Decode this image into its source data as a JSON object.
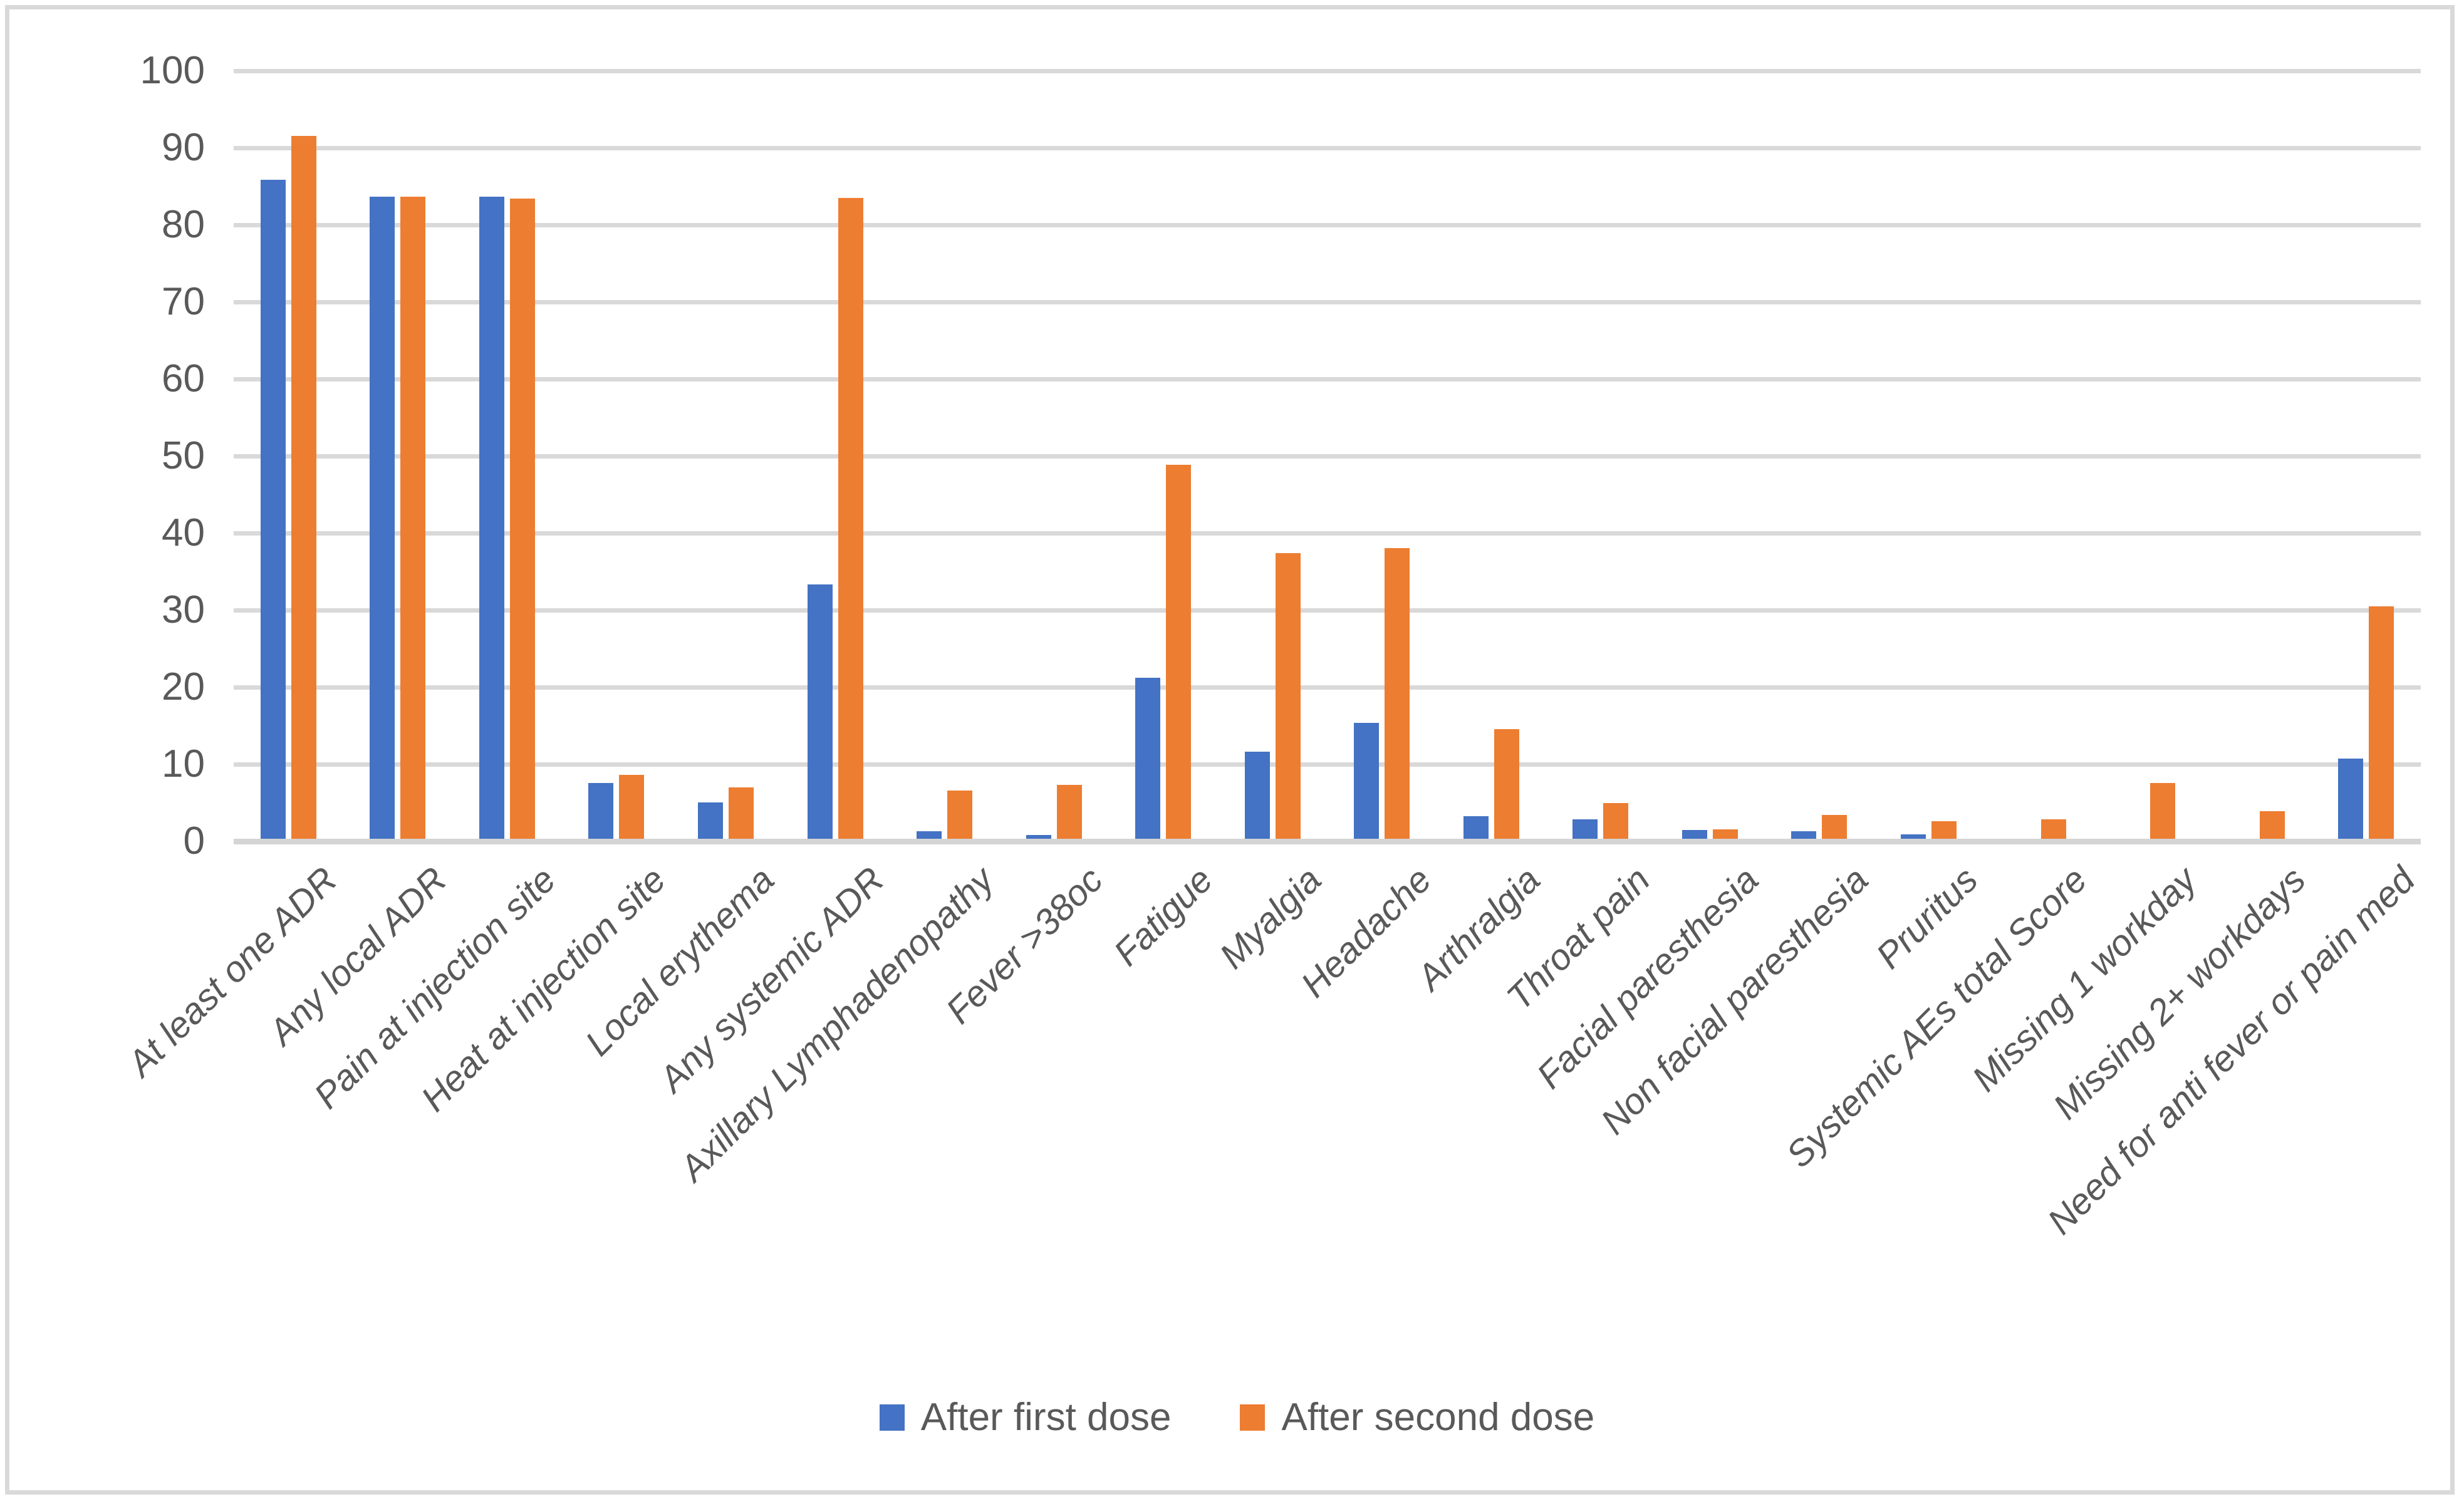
{
  "styles": {
    "background": "#FFFFFF",
    "figure_border_color": "#D9D9D9",
    "gridline_color": "#D9D9D9",
    "axis_line_color": "#D5D5D5",
    "text_color": "#595959",
    "series_first_color": "#4472C4",
    "series_second_color": "#ED7D31"
  },
  "legend": {
    "first_label": "After first dose",
    "second_label": "After second dose"
  },
  "chart_data": {
    "type": "bar",
    "title": "",
    "xlabel": "",
    "ylabel": "",
    "ylim": [
      0,
      100
    ],
    "yticks": [
      0,
      10,
      20,
      30,
      40,
      50,
      60,
      70,
      80,
      90,
      100
    ],
    "grid": true,
    "legend_position": "bottom-center",
    "categories": [
      "At least one ADR",
      "Any local ADR",
      "Pain at injection site",
      "Heat at injection site",
      "Local erythema",
      "Any systemic ADR",
      "Axillary Lymphadenopathy",
      "Fever >38oc",
      "Fatigue",
      "Myalgia",
      "Headache",
      "Arthralgia",
      "Throat pain",
      "Facial paresthesia",
      "Non facial paresthesia",
      "Pruritus",
      "Systemic AEs total Score",
      "Missing 1 workday",
      "Missing 2+ workdays",
      "Need for anti fever or pain med"
    ],
    "series": [
      {
        "name": "After first dose",
        "color": "#4472C4",
        "values": [
          85.5,
          83.3,
          83.3,
          7.2,
          4.7,
          33,
          1,
          0.5,
          20.9,
          11.3,
          15,
          2.9,
          2.5,
          1.1,
          1,
          0.6,
          0,
          0,
          0,
          10.4
        ]
      },
      {
        "name": "After second dose",
        "color": "#ED7D31",
        "values": [
          91.2,
          83.3,
          83.1,
          8.3,
          6.7,
          83.2,
          6.3,
          7,
          48.5,
          37.1,
          37.7,
          14.2,
          4.6,
          1.2,
          3.1,
          2.3,
          2.5,
          7.2,
          3.6,
          30.2
        ]
      }
    ]
  }
}
